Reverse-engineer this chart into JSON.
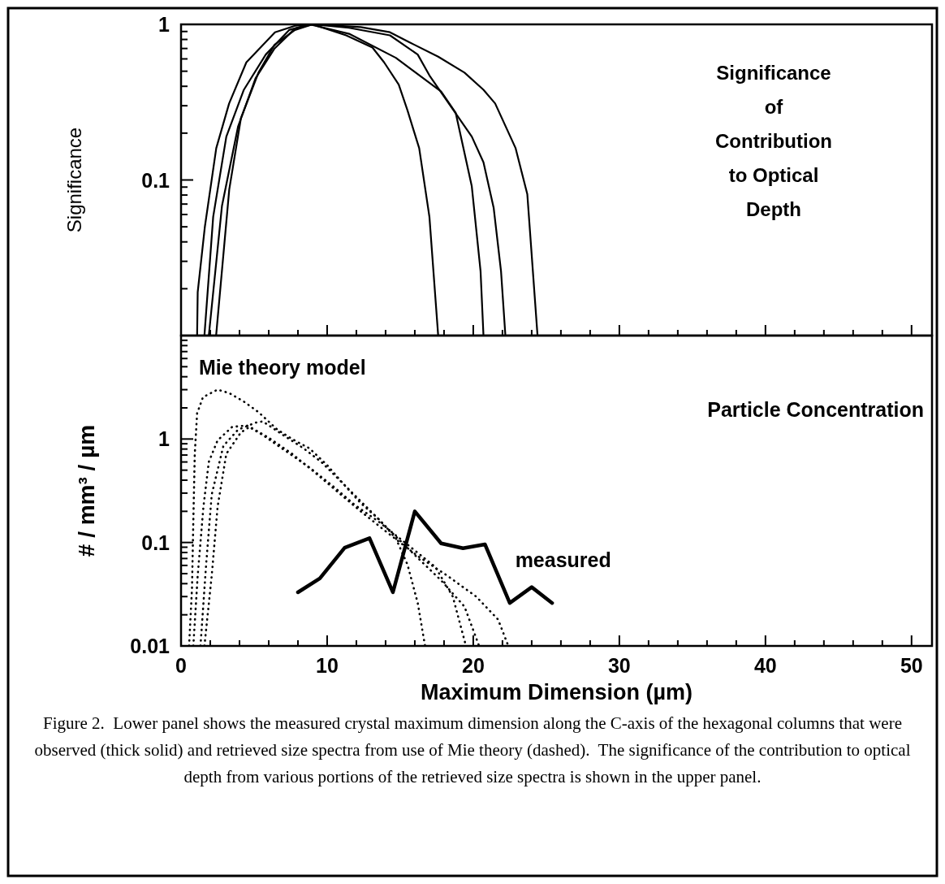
{
  "chart_data": [
    {
      "type": "line",
      "ylabel": "Significance",
      "log": "y",
      "xlim": [
        0,
        51.4
      ],
      "ylim": [
        0.01,
        1
      ],
      "tick_labels": "y",
      "xticks": [
        0,
        {
          "value": 2,
          "label": null
        },
        {
          "value": 4,
          "label": null
        },
        {
          "value": 6,
          "label": null
        },
        {
          "value": 8,
          "label": null
        },
        10,
        {
          "value": 12,
          "label": null
        },
        {
          "value": 14,
          "label": null
        },
        {
          "value": 16,
          "label": null
        },
        {
          "value": 18,
          "label": null
        },
        20,
        {
          "value": 22,
          "label": null
        },
        {
          "value": 24,
          "label": null
        },
        {
          "value": 26,
          "label": null
        },
        {
          "value": 28,
          "label": null
        },
        30,
        {
          "value": 32,
          "label": null
        },
        {
          "value": 34,
          "label": null
        },
        {
          "value": 36,
          "label": null
        },
        {
          "value": 38,
          "label": null
        },
        40,
        {
          "value": 42,
          "label": null
        },
        {
          "value": 44,
          "label": null
        },
        {
          "value": 46,
          "label": null
        },
        {
          "value": 48,
          "label": null
        },
        50
      ],
      "yticks": [
        {
          "value": 0.01,
          "label": null
        },
        {
          "value": 0.02,
          "label": null
        },
        {
          "value": 0.03,
          "label": null
        },
        {
          "value": 0.04,
          "label": null
        },
        {
          "value": 0.05,
          "label": null
        },
        {
          "value": 0.06,
          "label": null
        },
        {
          "value": 0.07,
          "label": null
        },
        {
          "value": 0.08,
          "label": null
        },
        {
          "value": 0.09,
          "label": null
        },
        0.1,
        {
          "value": 0.2,
          "label": null
        },
        {
          "value": 0.3,
          "label": null
        },
        {
          "value": 0.4,
          "label": null
        },
        {
          "value": 0.5,
          "label": null
        },
        {
          "value": 0.6,
          "label": null
        },
        {
          "value": 0.7,
          "label": null
        },
        {
          "value": 0.8,
          "label": null
        },
        {
          "value": 0.9,
          "label": null
        },
        1
      ],
      "annotations": [
        "Significance of Contribution to Optical Depth"
      ],
      "series": [
        {
          "color": "#000000",
          "line_style": "solid",
          "x": [
            1.1,
            1.14,
            1.63,
            2.41,
            3.29,
            4.47,
            6.43,
            7.8,
            9.0,
            11.3,
            13.1,
            13.9,
            14.9,
            15.5,
            16.3,
            17.0,
            17.6
          ],
          "values": [
            0.01,
            0.019,
            0.05,
            0.16,
            0.31,
            0.57,
            0.89,
            0.98,
            1,
            0.85,
            0.71,
            0.57,
            0.41,
            0.28,
            0.16,
            0.058,
            0.01
          ]
        },
        {
          "color": "#000000",
          "line_style": "solid",
          "x": [
            1.6,
            2.2,
            3.1,
            4.3,
            5.8,
            7.4,
            8.8,
            11.5,
            14.7,
            17.8,
            18.8,
            19.9,
            20.5,
            20.7
          ],
          "values": [
            0.01,
            0.058,
            0.19,
            0.38,
            0.64,
            0.92,
            1,
            0.87,
            0.61,
            0.37,
            0.27,
            0.091,
            0.026,
            0.01
          ]
        },
        {
          "color": "#000000",
          "line_style": "solid",
          "x": [
            1.9,
            2.8,
            3.9,
            5.1,
            6.4,
            7.8,
            9.0,
            11.5,
            14.3,
            16.2,
            17.0,
            19.9,
            20.7,
            21.4,
            21.9,
            22.2
          ],
          "values": [
            0.01,
            0.068,
            0.22,
            0.45,
            0.7,
            0.94,
            1,
            0.95,
            0.85,
            0.64,
            0.47,
            0.19,
            0.13,
            0.066,
            0.026,
            0.01
          ]
        },
        {
          "color": "#000000",
          "line_style": "solid",
          "x": [
            2.4,
            3.3,
            4.1,
            5.3,
            6.4,
            7.8,
            9.0,
            12.3,
            14.3,
            15.6,
            17.6,
            19.4,
            20.7,
            21.5,
            22.9,
            23.7,
            24.4
          ],
          "values": [
            0.01,
            0.087,
            0.25,
            0.49,
            0.74,
            0.92,
            1,
            0.96,
            0.89,
            0.77,
            0.62,
            0.49,
            0.38,
            0.31,
            0.16,
            0.081,
            0.01
          ]
        }
      ]
    },
    {
      "type": "line",
      "xlabel": "Maximum Dimension (µm)",
      "ylabel": "# / mm³ / µm",
      "log": "y",
      "xlim": [
        0,
        51.4
      ],
      "ylim": [
        0.01,
        10
      ],
      "xticks": [
        0,
        {
          "value": 2,
          "label": null
        },
        {
          "value": 4,
          "label": null
        },
        {
          "value": 6,
          "label": null
        },
        {
          "value": 8,
          "label": null
        },
        10,
        {
          "value": 12,
          "label": null
        },
        {
          "value": 14,
          "label": null
        },
        {
          "value": 16,
          "label": null
        },
        {
          "value": 18,
          "label": null
        },
        20,
        {
          "value": 22,
          "label": null
        },
        {
          "value": 24,
          "label": null
        },
        {
          "value": 26,
          "label": null
        },
        {
          "value": 28,
          "label": null
        },
        30,
        {
          "value": 32,
          "label": null
        },
        {
          "value": 34,
          "label": null
        },
        {
          "value": 36,
          "label": null
        },
        {
          "value": 38,
          "label": null
        },
        40,
        {
          "value": 42,
          "label": null
        },
        {
          "value": 44,
          "label": null
        },
        {
          "value": 46,
          "label": null
        },
        {
          "value": 48,
          "label": null
        },
        50
      ],
      "yticks": [
        0.01,
        {
          "value": 0.02,
          "label": null
        },
        {
          "value": 0.03,
          "label": null
        },
        {
          "value": 0.04,
          "label": null
        },
        {
          "value": 0.05,
          "label": null
        },
        {
          "value": 0.06,
          "label": null
        },
        {
          "value": 0.07,
          "label": null
        },
        {
          "value": 0.08,
          "label": null
        },
        {
          "value": 0.09,
          "label": null
        },
        0.1,
        {
          "value": 0.2,
          "label": null
        },
        {
          "value": 0.3,
          "label": null
        },
        {
          "value": 0.4,
          "label": null
        },
        {
          "value": 0.5,
          "label": null
        },
        {
          "value": 0.6,
          "label": null
        },
        {
          "value": 0.7,
          "label": null
        },
        {
          "value": 0.8,
          "label": null
        },
        {
          "value": 0.9,
          "label": null
        },
        1,
        {
          "value": 2,
          "label": null
        },
        {
          "value": 3,
          "label": null
        },
        {
          "value": 4,
          "label": null
        },
        {
          "value": 5,
          "label": null
        },
        {
          "value": 6,
          "label": null
        },
        {
          "value": 7,
          "label": null
        },
        {
          "value": 8,
          "label": null
        },
        {
          "value": 9,
          "label": null
        },
        {
          "value": 10,
          "label": null
        }
      ],
      "annotations": [
        "Mie theory model",
        "Particle Concentration",
        "measured",
        "Figure 2.  Lower panel shows the measured crystal maximum dimension along the C-axis of the hexagonal columns that were observed (thick solid) and retrieved size spectra from use of Mie theory (dashed).  The significance of the contribution to optical depth from various portions of the retrieved size spectra is shown in the upper panel."
      ],
      "series": [
        {
          "color": "#000000",
          "line_style": "dotted",
          "x": [
            0.55,
            0.75,
            0.84,
            0.94,
            1.1,
            1.5,
            2.5,
            3.3,
            4.3,
            5.3,
            6.6,
            7.6,
            8.8,
            10,
            11.1,
            12.3,
            13.5,
            14.7,
            15.5,
            16.2,
            16.7
          ],
          "values": [
            0.01,
            0.036,
            0.16,
            0.72,
            1.77,
            2.54,
            3.0,
            2.78,
            2.3,
            1.82,
            1.23,
            1.0,
            0.81,
            0.56,
            0.37,
            0.24,
            0.17,
            0.11,
            0.061,
            0.026,
            0.01
          ]
        },
        {
          "color": "#000000",
          "line_style": "dotted",
          "x": [
            0.84,
            1.14,
            1.53,
            1.9,
            2.5,
            3.5,
            4.5,
            5.6,
            7.2,
            8.8,
            10.4,
            11.9,
            13.5,
            15.6,
            17.4,
            18.6,
            19.5
          ],
          "values": [
            0.01,
            0.048,
            0.22,
            0.6,
            0.97,
            1.31,
            1.35,
            1.09,
            0.76,
            0.53,
            0.35,
            0.23,
            0.16,
            0.093,
            0.058,
            0.03,
            0.01
          ]
        },
        {
          "color": "#000000",
          "line_style": "dotted",
          "x": [
            1.33,
            1.73,
            2.1,
            2.9,
            3.9,
            5.1,
            5.6,
            7.0,
            8.4,
            9.6,
            11.1,
            12.7,
            14.3,
            15.9,
            17.8,
            19.4,
            20.4
          ],
          "values": [
            0.01,
            0.065,
            0.29,
            0.86,
            1.23,
            1.44,
            1.48,
            1.09,
            0.81,
            0.6,
            0.37,
            0.22,
            0.13,
            0.078,
            0.043,
            0.024,
            0.01
          ]
        },
        {
          "color": "#000000",
          "line_style": "dotted",
          "x": [
            1.6,
            2.1,
            2.5,
            3.1,
            4.1,
            4.7,
            6.0,
            7.6,
            9.2,
            10.7,
            12.3,
            14.3,
            16.2,
            18.2,
            20.2,
            21.7,
            22.4
          ],
          "values": [
            0.01,
            0.048,
            0.22,
            0.72,
            1.16,
            1.31,
            1.03,
            0.72,
            0.47,
            0.31,
            0.2,
            0.119,
            0.074,
            0.048,
            0.03,
            0.018,
            0.01
          ]
        },
        {
          "color": "#000000",
          "line_style": "solid",
          "x": [
            8.0,
            9.5,
            11.2,
            12.9,
            14.5,
            16.0,
            17.8,
            19.3,
            20.8,
            22.5,
            24.0,
            25.4
          ],
          "values": [
            0.033,
            0.045,
            0.089,
            0.11,
            0.033,
            0.2,
            0.098,
            0.088,
            0.096,
            0.026,
            0.037,
            0.026
          ]
        }
      ]
    }
  ]
}
